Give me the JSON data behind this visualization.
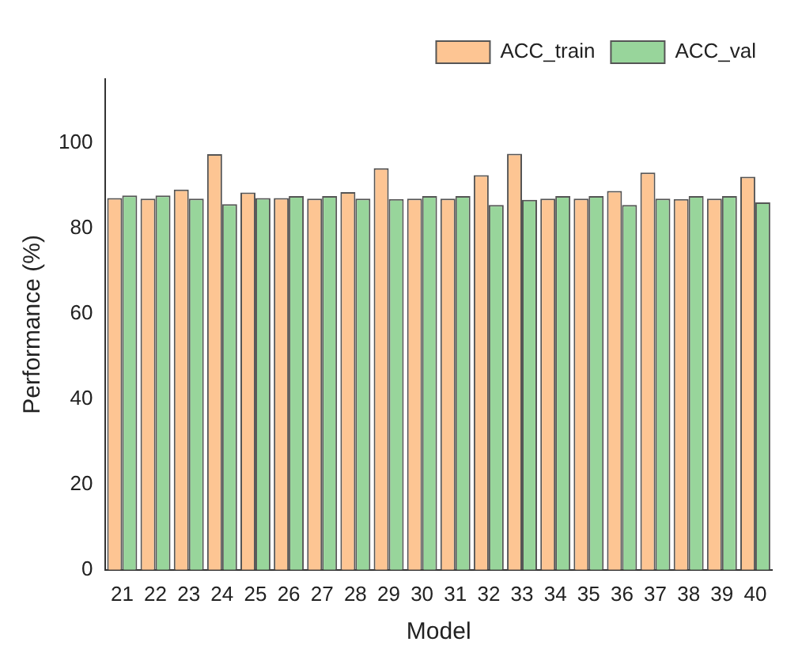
{
  "chart_data": {
    "type": "bar",
    "xlabel": "Model",
    "ylabel": "Performance (%)",
    "categories": [
      "21",
      "22",
      "23",
      "24",
      "25",
      "26",
      "27",
      "28",
      "29",
      "30",
      "31",
      "32",
      "33",
      "34",
      "35",
      "36",
      "37",
      "38",
      "39",
      "40"
    ],
    "series": [
      {
        "name": "ACC_train",
        "color": "#fdc593",
        "values": [
          87.1,
          87.0,
          89.1,
          97.4,
          88.4,
          87.1,
          87.0,
          88.5,
          94.1,
          87.0,
          87.0,
          92.5,
          97.5,
          87.0,
          87.0,
          88.8,
          93.1,
          86.9,
          87.0,
          92.1
        ]
      },
      {
        "name": "ACC_val",
        "color": "#98d59b",
        "values": [
          87.7,
          87.7,
          87.0,
          85.7,
          87.1,
          87.6,
          87.6,
          87.0,
          86.9,
          87.6,
          87.6,
          85.5,
          86.7,
          87.6,
          87.6,
          85.5,
          87.0,
          87.6,
          87.6,
          86.1
        ]
      }
    ],
    "ylim": [
      0,
      115
    ],
    "yticks": [
      0,
      20,
      40,
      60,
      80,
      100
    ],
    "grid": false,
    "legend": "top right"
  }
}
